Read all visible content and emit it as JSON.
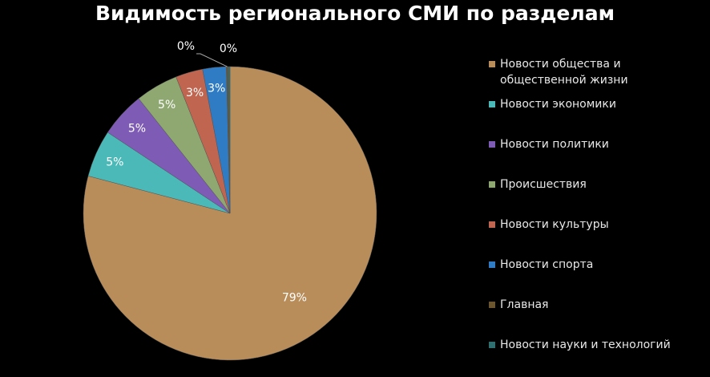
{
  "chart_data": {
    "type": "pie",
    "title": "Видимость регионального СМИ по разделам",
    "legend_position": "right",
    "categories": [
      "Новости общества и общественной жизни",
      "Новости экономики",
      "Новости политики",
      "Происшествия",
      "Новости культуры",
      "Новости спорта",
      "Главная",
      "Новости науки и технологий"
    ],
    "values": [
      79.1,
      5.2,
      5.0,
      4.7,
      3.0,
      2.6,
      0.2,
      0.2
    ],
    "data_labels": [
      "79%",
      "5%",
      "5%",
      "5%",
      "3%",
      "3%",
      "0%",
      "0%"
    ],
    "colors": [
      "#B98D5A",
      "#4BB9B8",
      "#7E5CB5",
      "#8FA872",
      "#C0654F",
      "#2F7CC5",
      "#6B5630",
      "#2F6F6F"
    ]
  }
}
